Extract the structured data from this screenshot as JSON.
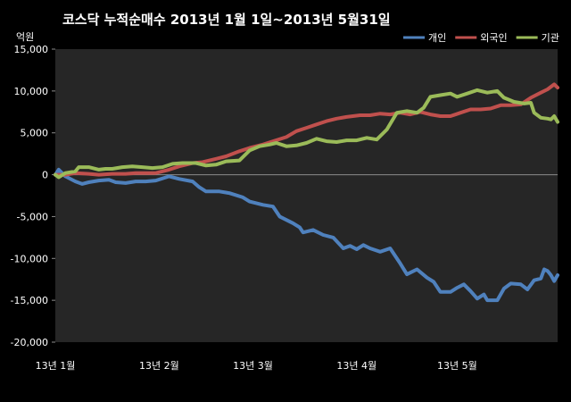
{
  "chart_data": {
    "type": "line",
    "title": "코스닥  누적순매수 2013년 1월 1일~2013년 5월31일",
    "ylabel": "억원",
    "ylim": [
      -20000,
      15000
    ],
    "yticks": [
      15000,
      10000,
      5000,
      0,
      -5000,
      -10000,
      -15000,
      -20000
    ],
    "ytick_labels": [
      "15,000",
      "10,000",
      "5,000",
      "0",
      "-5,000",
      "-10,000",
      "-15,000",
      "-20,000"
    ],
    "xlim": [
      "2013-01-01",
      "2013-05-31"
    ],
    "xticks": [
      {
        "label": "13년 1월",
        "date": "2013-01-01"
      },
      {
        "label": "13년 2월",
        "date": "2013-02-01"
      },
      {
        "label": "13년 3월",
        "date": "2013-03-01"
      },
      {
        "label": "13년 4월",
        "date": "2013-04-01"
      },
      {
        "label": "13년 5월",
        "date": "2013-05-01"
      }
    ],
    "grid": false,
    "legend_position": "top-right",
    "plot_background": "#262626",
    "series": [
      {
        "name": "개인",
        "color": "#4f81bd",
        "points": [
          [
            "2013-01-01",
            0
          ],
          [
            "2013-01-02",
            600
          ],
          [
            "2013-01-04",
            -200
          ],
          [
            "2013-01-07",
            -800
          ],
          [
            "2013-01-09",
            -1100
          ],
          [
            "2013-01-11",
            -900
          ],
          [
            "2013-01-14",
            -700
          ],
          [
            "2013-01-17",
            -600
          ],
          [
            "2013-01-19",
            -900
          ],
          [
            "2013-01-22",
            -1000
          ],
          [
            "2013-01-25",
            -800
          ],
          [
            "2013-01-28",
            -800
          ],
          [
            "2013-01-31",
            -700
          ],
          [
            "2013-02-04",
            -200
          ],
          [
            "2013-02-07",
            -500
          ],
          [
            "2013-02-11",
            -800
          ],
          [
            "2013-02-13",
            -1500
          ],
          [
            "2013-02-15",
            -2000
          ],
          [
            "2013-02-19",
            -2000
          ],
          [
            "2013-02-22",
            -2200
          ],
          [
            "2013-02-26",
            -2700
          ],
          [
            "2013-02-28",
            -3200
          ],
          [
            "2013-03-04",
            -3600
          ],
          [
            "2013-03-07",
            -3800
          ],
          [
            "2013-03-09",
            -5000
          ],
          [
            "2013-03-13",
            -5800
          ],
          [
            "2013-03-15",
            -6300
          ],
          [
            "2013-03-16",
            -6900
          ],
          [
            "2013-03-19",
            -6600
          ],
          [
            "2013-03-22",
            -7200
          ],
          [
            "2013-03-25",
            -7500
          ],
          [
            "2013-03-28",
            -8800
          ],
          [
            "2013-03-30",
            -8500
          ],
          [
            "2013-04-01",
            -8900
          ],
          [
            "2013-04-03",
            -8400
          ],
          [
            "2013-04-05",
            -8800
          ],
          [
            "2013-04-08",
            -9200
          ],
          [
            "2013-04-11",
            -8800
          ],
          [
            "2013-04-14",
            -10600
          ],
          [
            "2013-04-16",
            -11900
          ],
          [
            "2013-04-19",
            -11300
          ],
          [
            "2013-04-22",
            -12300
          ],
          [
            "2013-04-24",
            -12800
          ],
          [
            "2013-04-26",
            -14000
          ],
          [
            "2013-04-29",
            -14000
          ],
          [
            "2013-05-01",
            -13500
          ],
          [
            "2013-05-03",
            -13100
          ],
          [
            "2013-05-05",
            -13900
          ],
          [
            "2013-05-07",
            -14800
          ],
          [
            "2013-05-09",
            -14300
          ],
          [
            "2013-05-10",
            -15000
          ],
          [
            "2013-05-13",
            -15000
          ],
          [
            "2013-05-15",
            -13600
          ],
          [
            "2013-05-17",
            -13000
          ],
          [
            "2013-05-20",
            -13100
          ],
          [
            "2013-05-22",
            -13700
          ],
          [
            "2013-05-24",
            -12600
          ],
          [
            "2013-05-26",
            -12400
          ],
          [
            "2013-05-27",
            -11300
          ],
          [
            "2013-05-28",
            -11500
          ],
          [
            "2013-05-29",
            -12000
          ],
          [
            "2013-05-30",
            -12700
          ],
          [
            "2013-05-31",
            -12000
          ]
        ]
      },
      {
        "name": "외국인",
        "color": "#c0504d",
        "points": [
          [
            "2013-01-01",
            0
          ],
          [
            "2013-01-04",
            0
          ],
          [
            "2013-01-07",
            200
          ],
          [
            "2013-01-11",
            100
          ],
          [
            "2013-01-14",
            0
          ],
          [
            "2013-01-18",
            100
          ],
          [
            "2013-01-22",
            100
          ],
          [
            "2013-01-25",
            200
          ],
          [
            "2013-01-28",
            200
          ],
          [
            "2013-01-31",
            200
          ],
          [
            "2013-02-04",
            600
          ],
          [
            "2013-02-07",
            1000
          ],
          [
            "2013-02-11",
            1400
          ],
          [
            "2013-02-14",
            1500
          ],
          [
            "2013-02-18",
            1900
          ],
          [
            "2013-02-21",
            2200
          ],
          [
            "2013-02-25",
            2800
          ],
          [
            "2013-02-28",
            3200
          ],
          [
            "2013-03-04",
            3600
          ],
          [
            "2013-03-07",
            4000
          ],
          [
            "2013-03-11",
            4500
          ],
          [
            "2013-03-14",
            5200
          ],
          [
            "2013-03-17",
            5600
          ],
          [
            "2013-03-20",
            6000
          ],
          [
            "2013-03-23",
            6400
          ],
          [
            "2013-03-26",
            6700
          ],
          [
            "2013-03-29",
            6900
          ],
          [
            "2013-04-02",
            7100
          ],
          [
            "2013-04-05",
            7100
          ],
          [
            "2013-04-08",
            7300
          ],
          [
            "2013-04-11",
            7200
          ],
          [
            "2013-04-14",
            7400
          ],
          [
            "2013-04-17",
            7200
          ],
          [
            "2013-04-20",
            7500
          ],
          [
            "2013-04-23",
            7200
          ],
          [
            "2013-04-26",
            7000
          ],
          [
            "2013-04-29",
            7000
          ],
          [
            "2013-05-02",
            7400
          ],
          [
            "2013-05-05",
            7800
          ],
          [
            "2013-05-08",
            7800
          ],
          [
            "2013-05-11",
            7900
          ],
          [
            "2013-05-14",
            8300
          ],
          [
            "2013-05-17",
            8300
          ],
          [
            "2013-05-20",
            8400
          ],
          [
            "2013-05-23",
            9200
          ],
          [
            "2013-05-26",
            9800
          ],
          [
            "2013-05-28",
            10200
          ],
          [
            "2013-05-30",
            10800
          ],
          [
            "2013-05-31",
            10400
          ]
        ]
      },
      {
        "name": "기관",
        "color": "#9bbb59",
        "points": [
          [
            "2013-01-01",
            0
          ],
          [
            "2013-01-02",
            -300
          ],
          [
            "2013-01-04",
            200
          ],
          [
            "2013-01-07",
            400
          ],
          [
            "2013-01-08",
            900
          ],
          [
            "2013-01-11",
            900
          ],
          [
            "2013-01-14",
            600
          ],
          [
            "2013-01-16",
            700
          ],
          [
            "2013-01-18",
            700
          ],
          [
            "2013-01-21",
            900
          ],
          [
            "2013-01-24",
            1000
          ],
          [
            "2013-01-27",
            900
          ],
          [
            "2013-01-30",
            800
          ],
          [
            "2013-02-02",
            900
          ],
          [
            "2013-02-05",
            1300
          ],
          [
            "2013-02-08",
            1400
          ],
          [
            "2013-02-12",
            1400
          ],
          [
            "2013-02-15",
            1100
          ],
          [
            "2013-02-18",
            1200
          ],
          [
            "2013-02-21",
            1600
          ],
          [
            "2013-02-25",
            1700
          ],
          [
            "2013-02-28",
            2900
          ],
          [
            "2013-03-03",
            3400
          ],
          [
            "2013-03-06",
            3600
          ],
          [
            "2013-03-08",
            3800
          ],
          [
            "2013-03-11",
            3400
          ],
          [
            "2013-03-14",
            3500
          ],
          [
            "2013-03-17",
            3800
          ],
          [
            "2013-03-20",
            4300
          ],
          [
            "2013-03-23",
            4000
          ],
          [
            "2013-03-26",
            3900
          ],
          [
            "2013-03-29",
            4100
          ],
          [
            "2013-04-01",
            4100
          ],
          [
            "2013-04-04",
            4400
          ],
          [
            "2013-04-07",
            4200
          ],
          [
            "2013-04-10",
            5400
          ],
          [
            "2013-04-13",
            7400
          ],
          [
            "2013-04-16",
            7600
          ],
          [
            "2013-04-19",
            7400
          ],
          [
            "2013-04-21",
            8000
          ],
          [
            "2013-04-23",
            9300
          ],
          [
            "2013-04-26",
            9500
          ],
          [
            "2013-04-29",
            9700
          ],
          [
            "2013-05-01",
            9300
          ],
          [
            "2013-05-04",
            9700
          ],
          [
            "2013-05-07",
            10100
          ],
          [
            "2013-05-10",
            9800
          ],
          [
            "2013-05-13",
            10000
          ],
          [
            "2013-05-15",
            9200
          ],
          [
            "2013-05-18",
            8700
          ],
          [
            "2013-05-21",
            8500
          ],
          [
            "2013-05-23",
            8600
          ],
          [
            "2013-05-24",
            7400
          ],
          [
            "2013-05-26",
            6800
          ],
          [
            "2013-05-28",
            6700
          ],
          [
            "2013-05-29",
            6600
          ],
          [
            "2013-05-30",
            7000
          ],
          [
            "2013-05-31",
            6300
          ]
        ]
      }
    ]
  }
}
